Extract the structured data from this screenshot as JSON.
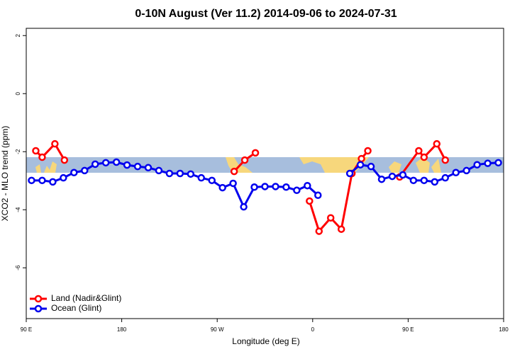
{
  "chart_data": {
    "type": "line",
    "title": "0-10N August (Ver 11.2)   2014-09-06 to 2024-07-31",
    "x_label": "Longitude (deg E)",
    "y_label": "XCO2 - MLO trend (ppm)",
    "xlim": [
      90,
      540
    ],
    "ylim": [
      -7.75,
      2.25
    ],
    "xticks": [
      {
        "value": 90,
        "label": "90 E"
      },
      {
        "value": 180,
        "label": "180"
      },
      {
        "value": 270,
        "label": "90 W"
      },
      {
        "value": 360,
        "label": "0"
      },
      {
        "value": 450,
        "label": "90 E"
      },
      {
        "value": 540,
        "label": "180"
      }
    ],
    "yticks": [
      2,
      0,
      -2,
      -4,
      -6
    ],
    "legend": "bottom-left",
    "series": [
      {
        "name": "Land (Nadir&Glint)",
        "color": "#ff0000",
        "x": [
          99,
          105,
          117,
          126,
          null,
          286,
          296,
          306,
          null,
          357,
          366,
          377,
          387,
          397,
          406,
          412,
          null,
          442,
          460,
          465,
          477,
          485
        ],
        "values": [
          -1.97,
          -2.19,
          -1.73,
          -2.29,
          null,
          -2.68,
          -2.29,
          -2.04,
          null,
          -3.7,
          -4.74,
          -4.28,
          -4.67,
          -2.75,
          -2.24,
          -1.97,
          null,
          -2.87,
          -1.97,
          -2.19,
          -1.73,
          -2.29
        ]
      },
      {
        "name": "Ocean (Glint)",
        "color": "#0000ee",
        "x": [
          95,
          105,
          115,
          125,
          135,
          145,
          155,
          165,
          175,
          185,
          195,
          205,
          215,
          225,
          235,
          245,
          255,
          265,
          275,
          285,
          295,
          305,
          315,
          325,
          335,
          345,
          355,
          365,
          375,
          385,
          395,
          405,
          415,
          425,
          435,
          445,
          455,
          465,
          475,
          485,
          495,
          505,
          515,
          525,
          535
        ],
        "values": [
          -2.99,
          -2.99,
          -3.04,
          -2.9,
          -2.72,
          -2.65,
          -2.43,
          -2.38,
          -2.36,
          -2.46,
          -2.51,
          -2.55,
          -2.65,
          -2.75,
          -2.75,
          -2.77,
          -2.9,
          -2.99,
          -3.24,
          -3.09,
          -3.9,
          -3.22,
          -3.2,
          -3.2,
          -3.22,
          -3.33,
          -3.17,
          -3.5,
          null,
          null,
          -2.75,
          -2.45,
          -2.51,
          -2.95,
          -2.85,
          -2.8,
          -2.99,
          -2.99,
          -3.04,
          -2.9,
          -2.72,
          -2.65,
          -2.45,
          -2.4,
          -2.38
        ]
      }
    ]
  }
}
